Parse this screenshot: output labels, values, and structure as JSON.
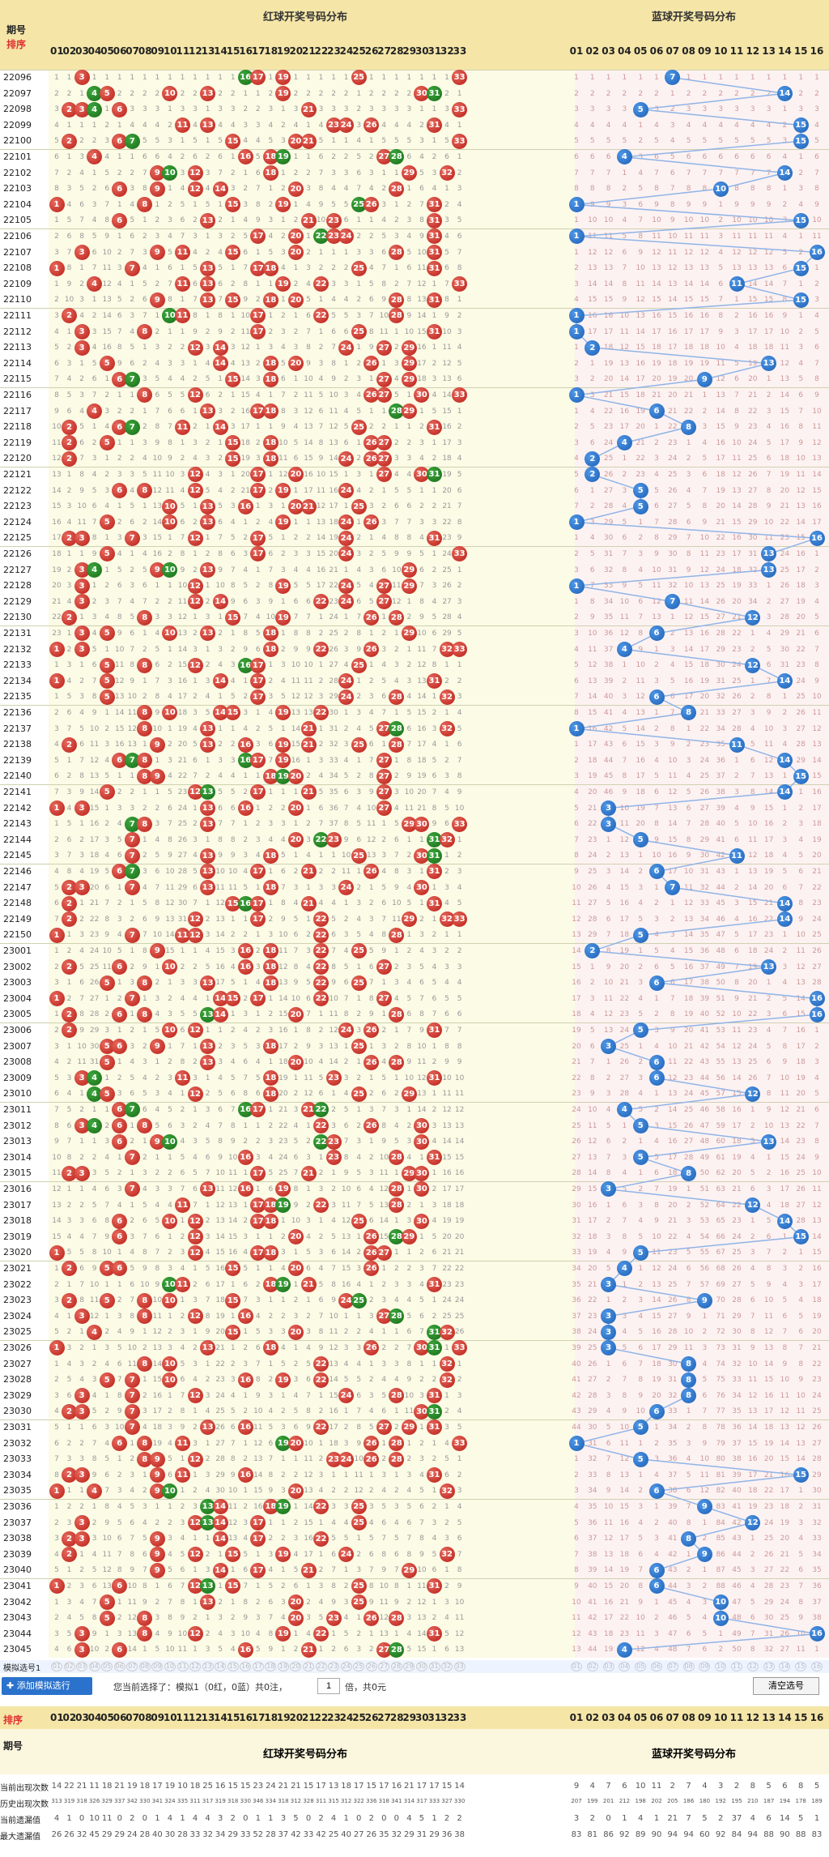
{
  "header": {
    "period_label": "期号",
    "sort_label": "排序",
    "red_caption": "红球开奖号码分布",
    "blue_caption": "蓝球开奖号码分布"
  },
  "red_numbers": [
    "01",
    "02",
    "03",
    "04",
    "05",
    "06",
    "07",
    "08",
    "09",
    "10",
    "11",
    "12",
    "13",
    "14",
    "15",
    "16",
    "17",
    "18",
    "19",
    "20",
    "21",
    "22",
    "23",
    "24",
    "25",
    "26",
    "27",
    "28",
    "29",
    "30",
    "31",
    "32",
    "33"
  ],
  "blue_numbers": [
    "01",
    "02",
    "03",
    "04",
    "05",
    "06",
    "07",
    "08",
    "09",
    "10",
    "11",
    "12",
    "13",
    "14",
    "15",
    "16"
  ],
  "colors": {
    "header_bg": "#f5e6a8",
    "red_ball": "#c0261d",
    "green_ball": "#1f7a1f",
    "blue_ball": "#2a72cc",
    "red_zone_bg": "#fbfbe6",
    "blue_zone_bg": "#fdf2f2",
    "band_bg": "#f3f3d8"
  },
  "draws": [
    {
      "p": "22096",
      "r": [
        3,
        16,
        17,
        19,
        25,
        33
      ],
      "b": 7
    },
    {
      "p": "22097",
      "r": [
        4,
        5,
        10,
        13,
        19,
        30,
        31
      ],
      "b": 14
    },
    {
      "p": "22098",
      "r": [
        2,
        3,
        4,
        6,
        21,
        33
      ],
      "b": 5
    },
    {
      "p": "22099",
      "r": [
        11,
        13,
        23,
        24,
        26,
        31
      ],
      "b": 15
    },
    {
      "p": "22100",
      "r": [
        2,
        6,
        7,
        15,
        20,
        21,
        33
      ],
      "b": 15
    },
    {
      "p": "22101",
      "r": [
        4,
        16,
        18,
        19,
        27,
        28
      ],
      "b": 4
    },
    {
      "p": "22102",
      "r": [
        9,
        10,
        12,
        18,
        29,
        32
      ],
      "b": 14
    },
    {
      "p": "22103",
      "r": [
        6,
        9,
        12,
        14,
        20,
        28
      ],
      "b": 10
    },
    {
      "p": "22104",
      "r": [
        1,
        8,
        15,
        19,
        25,
        26,
        31
      ],
      "b": 1
    },
    {
      "p": "22105",
      "r": [
        6,
        13,
        21,
        23,
        31
      ],
      "b": 15
    },
    {
      "p": "22106",
      "r": [
        17,
        20,
        22,
        23,
        24,
        31
      ],
      "b": 1
    },
    {
      "p": "22107",
      "r": [
        3,
        9,
        11,
        15,
        20,
        28,
        31
      ],
      "b": 16
    },
    {
      "p": "22108",
      "r": [
        1,
        7,
        13,
        17,
        18,
        25,
        31
      ],
      "b": 15
    },
    {
      "p": "22109",
      "r": [
        4,
        11,
        13,
        19,
        22,
        33
      ],
      "b": 11
    },
    {
      "p": "22110",
      "r": [
        9,
        13,
        15,
        18,
        20,
        28,
        31
      ],
      "b": 15
    },
    {
      "p": "22111",
      "r": [
        2,
        10,
        11,
        17,
        22,
        28
      ],
      "b": 1
    },
    {
      "p": "22112",
      "r": [
        3,
        8,
        17,
        25,
        31
      ],
      "b": 1
    },
    {
      "p": "22113",
      "r": [
        3,
        12,
        14,
        24,
        27,
        29
      ],
      "b": 2
    },
    {
      "p": "22114",
      "r": [
        5,
        14,
        18,
        20,
        26,
        29
      ],
      "b": 13
    },
    {
      "p": "22115",
      "r": [
        6,
        7,
        15,
        18,
        27,
        29
      ],
      "b": 9
    },
    {
      "p": "22116",
      "r": [
        8,
        12,
        26,
        27,
        30,
        33
      ],
      "b": 1
    },
    {
      "p": "22117",
      "r": [
        4,
        13,
        17,
        18,
        28,
        29
      ],
      "b": 6
    },
    {
      "p": "22118",
      "r": [
        2,
        6,
        7,
        11,
        14,
        25,
        31
      ],
      "b": 8
    },
    {
      "p": "22119",
      "r": [
        2,
        5,
        15,
        18,
        26,
        27
      ],
      "b": 4
    },
    {
      "p": "22120",
      "r": [
        2,
        15,
        18,
        24,
        26,
        27
      ],
      "b": 2
    },
    {
      "p": "22121",
      "r": [
        12,
        17,
        20,
        27,
        30,
        31
      ],
      "b": 2
    },
    {
      "p": "22122",
      "r": [
        6,
        8,
        12,
        17,
        19,
        24
      ],
      "b": 5
    },
    {
      "p": "22123",
      "r": [
        10,
        13,
        16,
        20,
        21,
        25
      ],
      "b": 5
    },
    {
      "p": "22124",
      "r": [
        5,
        10,
        13,
        19,
        24,
        26
      ],
      "b": 1
    },
    {
      "p": "22125",
      "r": [
        2,
        3,
        7,
        12,
        17,
        24,
        31
      ],
      "b": 16
    },
    {
      "p": "22126",
      "r": [
        5,
        17,
        24,
        33
      ],
      "b": 13
    },
    {
      "p": "22127",
      "r": [
        3,
        4,
        9,
        10,
        13,
        29
      ],
      "b": 13
    },
    {
      "p": "22128",
      "r": [
        3,
        12,
        19,
        24,
        27,
        29
      ],
      "b": 1
    },
    {
      "p": "22129",
      "r": [
        3,
        12,
        14,
        22,
        24,
        27
      ],
      "b": 7
    },
    {
      "p": "22130",
      "r": [
        2,
        8,
        15,
        19,
        26,
        28
      ],
      "b": 12
    },
    {
      "p": "22131",
      "r": [
        3,
        5,
        10,
        13,
        18,
        29
      ],
      "b": 6
    },
    {
      "p": "22132",
      "r": [
        1,
        3,
        18,
        22,
        26,
        32,
        33
      ],
      "b": 4
    },
    {
      "p": "22133",
      "r": [
        5,
        8,
        12,
        16,
        17,
        25
      ],
      "b": 12
    },
    {
      "p": "22134",
      "r": [
        1,
        5,
        14,
        17,
        24,
        31
      ],
      "b": 14
    },
    {
      "p": "22135",
      "r": [
        5,
        17,
        24,
        28,
        32
      ],
      "b": 6
    },
    {
      "p": "22136",
      "r": [
        8,
        10,
        14,
        15,
        19,
        22
      ],
      "b": 8
    },
    {
      "p": "22137",
      "r": [
        8,
        13,
        21,
        27,
        28,
        32
      ],
      "b": 1
    },
    {
      "p": "22138",
      "r": [
        2,
        9,
        13,
        16,
        19,
        21,
        25,
        28
      ],
      "b": 11
    },
    {
      "p": "22139",
      "r": [
        6,
        7,
        8,
        16,
        17,
        19,
        27
      ],
      "b": 14
    },
    {
      "p": "22140",
      "r": [
        8,
        9,
        18,
        19,
        20,
        27
      ],
      "b": 15
    },
    {
      "p": "22141",
      "r": [
        5,
        12,
        13,
        17,
        21,
        27
      ],
      "b": 14
    },
    {
      "p": "22142",
      "r": [
        1,
        3,
        13,
        16,
        20,
        27
      ],
      "b": 3
    },
    {
      "p": "22143",
      "r": [
        7,
        8,
        13,
        29,
        30,
        33
      ],
      "b": 3
    },
    {
      "p": "22144",
      "r": [
        7,
        20,
        22,
        23,
        31,
        32
      ],
      "b": 5
    },
    {
      "p": "22145",
      "r": [
        7,
        13,
        18,
        25,
        30,
        31
      ],
      "b": 11
    },
    {
      "p": "22146",
      "r": [
        6,
        7,
        13,
        17,
        21,
        26,
        31
      ],
      "b": 6
    },
    {
      "p": "22147",
      "r": [
        2,
        3,
        7,
        13,
        18,
        24,
        30
      ],
      "b": 7
    },
    {
      "p": "22148",
      "r": [
        2,
        15,
        16,
        17,
        21,
        31
      ],
      "b": 14
    },
    {
      "p": "22149",
      "r": [
        2,
        12,
        17,
        22,
        29,
        32,
        33
      ],
      "b": 14
    },
    {
      "p": "22150",
      "r": [
        1,
        7,
        11,
        12,
        22,
        28
      ],
      "b": 5
    },
    {
      "p": "23001",
      "r": [
        9,
        16,
        18,
        22,
        25
      ],
      "b": 2
    },
    {
      "p": "23002",
      "r": [
        2,
        6,
        10,
        16,
        18,
        22,
        27
      ],
      "b": 13
    },
    {
      "p": "23003",
      "r": [
        5,
        8,
        13,
        18,
        22,
        25
      ],
      "b": 6
    },
    {
      "p": "23004",
      "r": [
        1,
        7,
        14,
        15,
        17,
        22,
        27
      ],
      "b": 16
    },
    {
      "p": "23005",
      "r": [
        2,
        6,
        8,
        13,
        14,
        20,
        28
      ],
      "b": 16
    },
    {
      "p": "23006",
      "r": [
        2,
        10,
        12,
        24,
        26,
        31
      ],
      "b": 5
    },
    {
      "p": "23007",
      "r": [
        5,
        6,
        9,
        13,
        18,
        25
      ],
      "b": 3
    },
    {
      "p": "23008",
      "r": [
        5,
        13,
        20,
        26,
        28
      ],
      "b": 6
    },
    {
      "p": "23009",
      "r": [
        3,
        4,
        11,
        18,
        23,
        31
      ],
      "b": 6
    },
    {
      "p": "23010",
      "r": [
        4,
        5,
        12,
        18,
        25,
        29
      ],
      "b": 12
    },
    {
      "p": "23011",
      "r": [
        6,
        7,
        16,
        17,
        21,
        22
      ],
      "b": 4
    },
    {
      "p": "23012",
      "r": [
        3,
        4,
        6,
        8,
        22,
        26,
        30
      ],
      "b": 5
    },
    {
      "p": "23013",
      "r": [
        6,
        9,
        10,
        22,
        23,
        30
      ],
      "b": 13
    },
    {
      "p": "23014",
      "r": [
        7,
        16,
        23,
        28,
        31
      ],
      "b": 5
    },
    {
      "p": "23015",
      "r": [
        2,
        3,
        17,
        21,
        29,
        30
      ],
      "b": 8
    },
    {
      "p": "23016",
      "r": [
        7,
        13,
        16,
        19,
        28,
        30
      ],
      "b": 3
    },
    {
      "p": "23017",
      "r": [
        11,
        17,
        18,
        19,
        22,
        28
      ],
      "b": 12
    },
    {
      "p": "23018",
      "r": [
        6,
        10,
        12,
        17,
        18,
        25,
        30
      ],
      "b": 14
    },
    {
      "p": "23019",
      "r": [
        6,
        12,
        20,
        26,
        28,
        29
      ],
      "b": 15
    },
    {
      "p": "23020",
      "r": [
        1,
        12,
        17,
        18,
        26,
        27
      ],
      "b": 5
    },
    {
      "p": "23021",
      "r": [
        2,
        5,
        6,
        15,
        20,
        26
      ],
      "b": 4
    },
    {
      "p": "23022",
      "r": [
        10,
        11,
        18,
        19,
        21,
        31
      ],
      "b": 3
    },
    {
      "p": "23023",
      "r": [
        2,
        5,
        8,
        10,
        15,
        24,
        25
      ],
      "b": 9
    },
    {
      "p": "23024",
      "r": [
        3,
        8,
        12,
        16,
        27,
        28
      ],
      "b": 3
    },
    {
      "p": "23025",
      "r": [
        4,
        15,
        20,
        31,
        32
      ],
      "b": 3
    },
    {
      "p": "23026",
      "r": [
        1,
        13,
        18,
        26,
        30,
        31,
        33
      ],
      "b": 3
    },
    {
      "p": "23027",
      "r": [
        8,
        10,
        22,
        32
      ],
      "b": 8
    },
    {
      "p": "23028",
      "r": [
        5,
        7,
        10,
        16,
        19,
        22,
        32
      ],
      "b": 8
    },
    {
      "p": "23029",
      "r": [
        3,
        7,
        12,
        24,
        28,
        31
      ],
      "b": 8
    },
    {
      "p": "23030",
      "r": [
        2,
        3,
        7,
        30,
        31
      ],
      "b": 6
    },
    {
      "p": "23031",
      "r": [
        7,
        13,
        16,
        22,
        27,
        29,
        31
      ],
      "b": 5
    },
    {
      "p": "23032",
      "r": [
        6,
        8,
        11,
        19,
        20,
        26,
        28,
        33
      ],
      "b": 1
    },
    {
      "p": "23033",
      "r": [
        8,
        9,
        12,
        23,
        24,
        26,
        28
      ],
      "b": 5
    },
    {
      "p": "23034",
      "r": [
        2,
        3,
        9,
        11,
        16,
        31
      ],
      "b": 15
    },
    {
      "p": "23035",
      "r": [
        1,
        4,
        9,
        10,
        20,
        32
      ],
      "b": 6
    },
    {
      "p": "23036",
      "r": [
        13,
        14,
        18,
        19,
        22,
        25
      ],
      "b": 9
    },
    {
      "p": "23037",
      "r": [
        3,
        12,
        13,
        14,
        17,
        25
      ],
      "b": 12
    },
    {
      "p": "23038",
      "r": [
        2,
        3,
        9,
        14,
        17,
        22
      ],
      "b": 8
    },
    {
      "p": "23039",
      "r": [
        2,
        9,
        12,
        15,
        19,
        24,
        32
      ],
      "b": 9
    },
    {
      "p": "23040",
      "r": [
        9,
        14,
        17,
        21,
        29
      ],
      "b": 6
    },
    {
      "p": "23041",
      "r": [
        1,
        6,
        12,
        13,
        15,
        25,
        31
      ],
      "b": 6
    },
    {
      "p": "23042",
      "r": [
        5,
        13,
        20,
        25
      ],
      "b": 10
    },
    {
      "p": "23043",
      "r": [
        5,
        8,
        20,
        23,
        26,
        28
      ],
      "b": 10
    },
    {
      "p": "23044",
      "r": [
        3,
        8,
        12,
        19,
        22,
        31
      ],
      "b": 16
    },
    {
      "p": "23045",
      "r": [
        3,
        6,
        16,
        21,
        27,
        28
      ],
      "b": 4
    }
  ],
  "sim_row": {
    "label": "模拟选号1"
  },
  "controls": {
    "add_button": "添加模拟选行",
    "selection_text": "您当前选择了：模拟1（0红，0蓝）共0注，",
    "multiplier_value": "1",
    "multiplier_suffix": "倍，共0元",
    "clear_button": "清空选号"
  },
  "footer": {
    "sort_label": "排序",
    "period_label": "期号",
    "red_caption": "红球开奖号码分布",
    "blue_caption": "蓝球开奖号码分布",
    "stats": [
      {
        "label": "当前出现次数",
        "red": [
          "14",
          "22",
          "21",
          "11",
          "18",
          "21",
          "19",
          "18",
          "17",
          "19",
          "10",
          "18",
          "25",
          "16",
          "15",
          "15",
          "23",
          "24",
          "21",
          "21",
          "15",
          "17",
          "13",
          "18",
          "17",
          "15",
          "17",
          "16",
          "21",
          "17",
          "17",
          "15",
          "14"
        ],
        "blue": [
          "9",
          "4",
          "7",
          "6",
          "10",
          "11",
          "2",
          "7",
          "4",
          "3",
          "2",
          "8",
          "5",
          "6",
          "8",
          "5"
        ]
      },
      {
        "label": "历史出现次数",
        "red": [
          "313",
          "319",
          "318",
          "326",
          "329",
          "337",
          "342",
          "330",
          "341",
          "324",
          "335",
          "311",
          "317",
          "319",
          "318",
          "330",
          "346",
          "334",
          "318",
          "312",
          "328",
          "311",
          "315",
          "312",
          "322",
          "336",
          "318",
          "341",
          "314",
          "317",
          "333",
          "327",
          "330"
        ],
        "blue": [
          "207",
          "199",
          "201",
          "212",
          "198",
          "202",
          "205",
          "186",
          "180",
          "192",
          "195",
          "210",
          "187",
          "194",
          "178",
          "189"
        ]
      },
      {
        "label": "当前遗漏值",
        "red": [
          "4",
          "1",
          "0",
          "10",
          "11",
          "0",
          "2",
          "0",
          "1",
          "4",
          "1",
          "4",
          "4",
          "3",
          "2",
          "0",
          "1",
          "1",
          "3",
          "5",
          "0",
          "2",
          "4",
          "1",
          "0",
          "2",
          "0",
          "0",
          "4",
          "5",
          "1",
          "2",
          "2"
        ],
        "blue": [
          "3",
          "2",
          "0",
          "1",
          "4",
          "1",
          "21",
          "7",
          "5",
          "2",
          "37",
          "4",
          "6",
          "14",
          "5",
          "1"
        ]
      },
      {
        "label": "最大遗漏值",
        "red": [
          "26",
          "26",
          "32",
          "45",
          "29",
          "29",
          "24",
          "28",
          "40",
          "30",
          "28",
          "33",
          "32",
          "34",
          "29",
          "33",
          "52",
          "28",
          "37",
          "42",
          "33",
          "42",
          "25",
          "40",
          "27",
          "26",
          "35",
          "32",
          "29",
          "31",
          "29",
          "36",
          "38"
        ],
        "blue": [
          "83",
          "81",
          "86",
          "92",
          "89",
          "90",
          "94",
          "94",
          "60",
          "92",
          "84",
          "94",
          "88",
          "90",
          "88",
          "83"
        ]
      }
    ]
  }
}
